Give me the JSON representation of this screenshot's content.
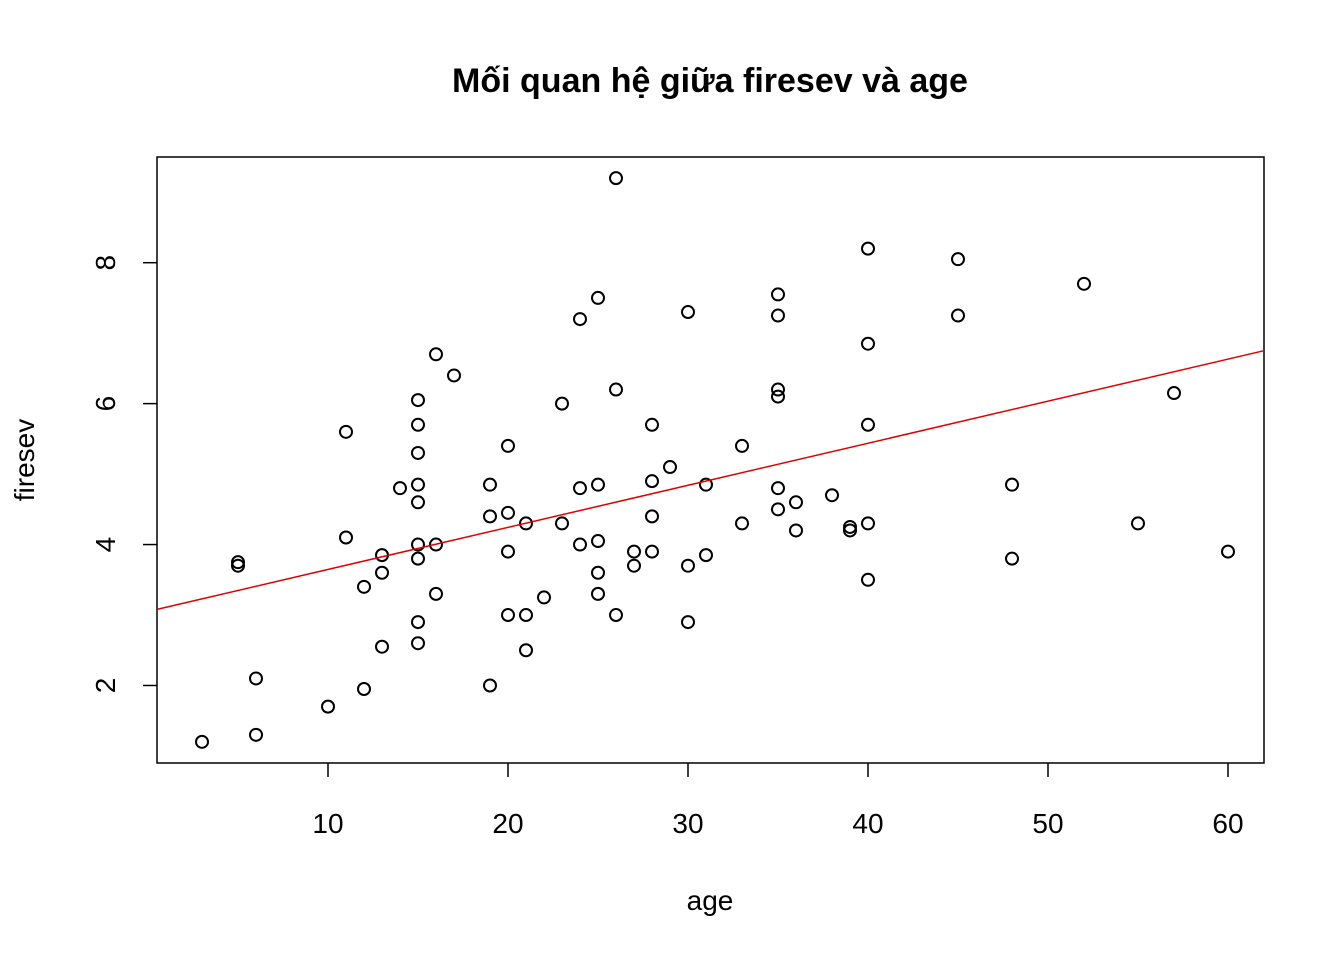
{
  "chart_data": {
    "type": "scatter",
    "title": "Mối quan hệ giữa firesev và age",
    "xlabel": "age",
    "ylabel": "firesev",
    "xlim": [
      0.5,
      62
    ],
    "ylim": [
      0.9,
      9.5
    ],
    "x_ticks": [
      10,
      20,
      30,
      40,
      50,
      60
    ],
    "y_ticks": [
      2,
      4,
      6,
      8
    ],
    "grid": false,
    "regression_line": {
      "intercept": 3.05,
      "slope": 0.0597,
      "color": "#e00000"
    },
    "points": [
      {
        "x": 3,
        "y": 1.2
      },
      {
        "x": 5,
        "y": 3.75
      },
      {
        "x": 5,
        "y": 3.7
      },
      {
        "x": 6,
        "y": 2.1
      },
      {
        "x": 6,
        "y": 1.3
      },
      {
        "x": 10,
        "y": 1.7
      },
      {
        "x": 11,
        "y": 5.6
      },
      {
        "x": 11,
        "y": 4.1
      },
      {
        "x": 12,
        "y": 3.4
      },
      {
        "x": 12,
        "y": 1.95
      },
      {
        "x": 13,
        "y": 3.85
      },
      {
        "x": 13,
        "y": 3.6
      },
      {
        "x": 13,
        "y": 2.55
      },
      {
        "x": 14,
        "y": 4.8
      },
      {
        "x": 15,
        "y": 6.05
      },
      {
        "x": 15,
        "y": 5.7
      },
      {
        "x": 15,
        "y": 5.3
      },
      {
        "x": 15,
        "y": 4.85
      },
      {
        "x": 15,
        "y": 4.6
      },
      {
        "x": 15,
        "y": 4.0
      },
      {
        "x": 15,
        "y": 3.8
      },
      {
        "x": 15,
        "y": 2.9
      },
      {
        "x": 15,
        "y": 2.6
      },
      {
        "x": 16,
        "y": 6.7
      },
      {
        "x": 16,
        "y": 4.0
      },
      {
        "x": 16,
        "y": 3.3
      },
      {
        "x": 17,
        "y": 6.4
      },
      {
        "x": 19,
        "y": 4.85
      },
      {
        "x": 19,
        "y": 4.4
      },
      {
        "x": 19,
        "y": 2.0
      },
      {
        "x": 20,
        "y": 5.4
      },
      {
        "x": 20,
        "y": 4.45
      },
      {
        "x": 20,
        "y": 3.9
      },
      {
        "x": 20,
        "y": 3.0
      },
      {
        "x": 21,
        "y": 4.3
      },
      {
        "x": 21,
        "y": 3.0
      },
      {
        "x": 21,
        "y": 2.5
      },
      {
        "x": 22,
        "y": 3.25
      },
      {
        "x": 23,
        "y": 6.0
      },
      {
        "x": 23,
        "y": 4.3
      },
      {
        "x": 24,
        "y": 7.2
      },
      {
        "x": 24,
        "y": 4.8
      },
      {
        "x": 24,
        "y": 4.0
      },
      {
        "x": 25,
        "y": 7.5
      },
      {
        "x": 25,
        "y": 4.85
      },
      {
        "x": 25,
        "y": 4.05
      },
      {
        "x": 25,
        "y": 3.6
      },
      {
        "x": 25,
        "y": 3.3
      },
      {
        "x": 26,
        "y": 9.2
      },
      {
        "x": 26,
        "y": 6.2
      },
      {
        "x": 26,
        "y": 3.0
      },
      {
        "x": 27,
        "y": 3.9
      },
      {
        "x": 27,
        "y": 3.7
      },
      {
        "x": 28,
        "y": 5.7
      },
      {
        "x": 28,
        "y": 4.9
      },
      {
        "x": 28,
        "y": 4.4
      },
      {
        "x": 28,
        "y": 3.9
      },
      {
        "x": 29,
        "y": 5.1
      },
      {
        "x": 30,
        "y": 7.3
      },
      {
        "x": 30,
        "y": 3.7
      },
      {
        "x": 30,
        "y": 2.9
      },
      {
        "x": 31,
        "y": 4.85
      },
      {
        "x": 31,
        "y": 3.85
      },
      {
        "x": 33,
        "y": 5.4
      },
      {
        "x": 33,
        "y": 4.3
      },
      {
        "x": 35,
        "y": 7.55
      },
      {
        "x": 35,
        "y": 7.25
      },
      {
        "x": 35,
        "y": 6.2
      },
      {
        "x": 35,
        "y": 6.1
      },
      {
        "x": 35,
        "y": 4.8
      },
      {
        "x": 35,
        "y": 4.5
      },
      {
        "x": 36,
        "y": 4.6
      },
      {
        "x": 36,
        "y": 4.2
      },
      {
        "x": 38,
        "y": 4.7
      },
      {
        "x": 39,
        "y": 4.25
      },
      {
        "x": 39,
        "y": 4.2
      },
      {
        "x": 40,
        "y": 8.2
      },
      {
        "x": 40,
        "y": 6.85
      },
      {
        "x": 40,
        "y": 5.7
      },
      {
        "x": 40,
        "y": 4.3
      },
      {
        "x": 40,
        "y": 3.5
      },
      {
        "x": 45,
        "y": 8.05
      },
      {
        "x": 45,
        "y": 7.25
      },
      {
        "x": 48,
        "y": 4.85
      },
      {
        "x": 48,
        "y": 3.8
      },
      {
        "x": 52,
        "y": 7.7
      },
      {
        "x": 55,
        "y": 4.3
      },
      {
        "x": 57,
        "y": 6.15
      },
      {
        "x": 60,
        "y": 3.9
      }
    ]
  }
}
